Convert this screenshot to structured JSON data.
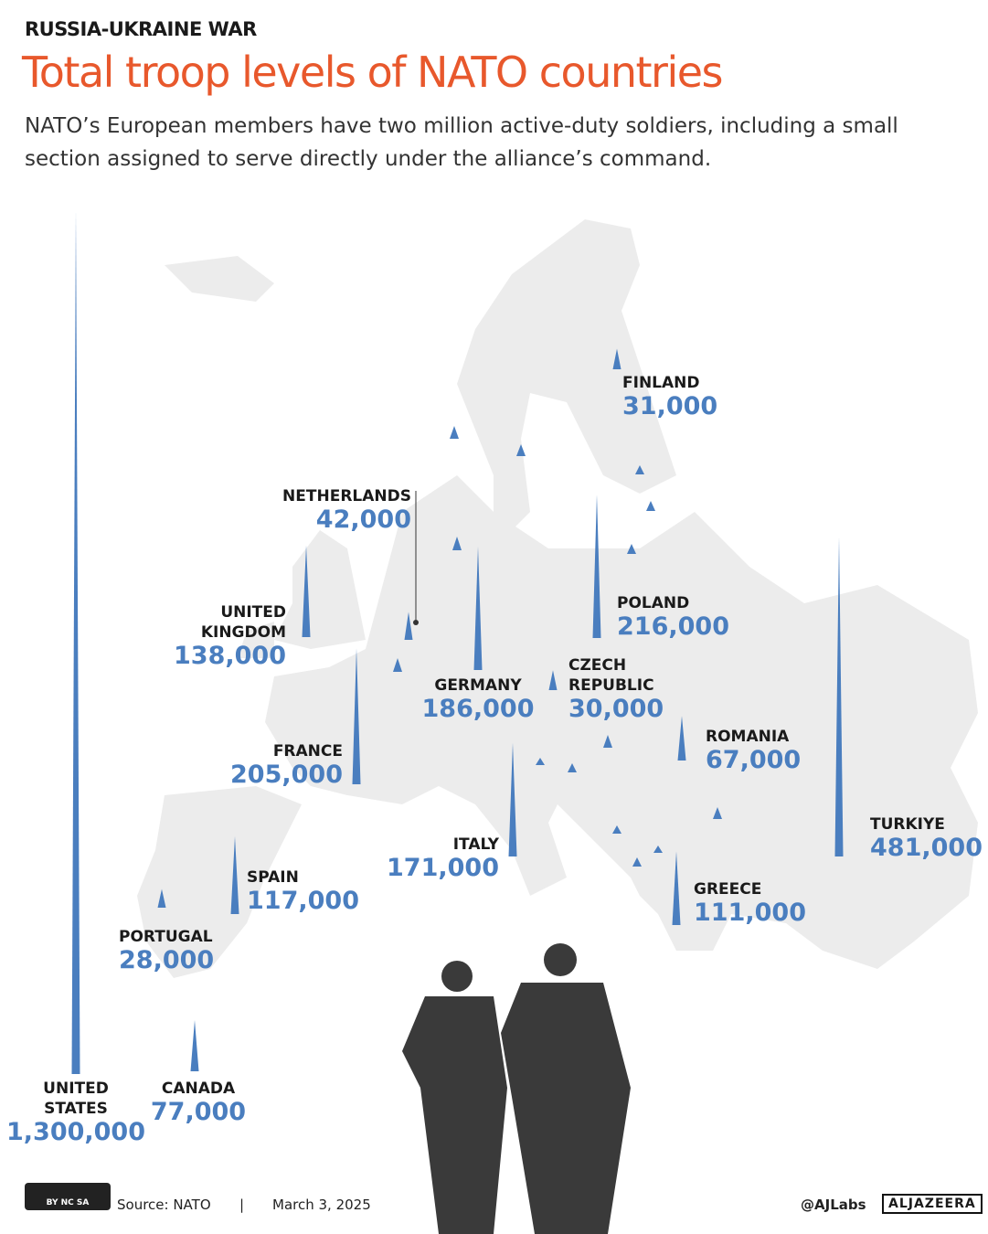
{
  "chart_data": {
    "type": "spike-map",
    "kicker": "RUSSIA-UKRAINE WAR",
    "title": "Total troop levels of NATO countries",
    "subtitle": "NATO’s European members have two million active-duty soldiers, including a small section assigned to serve directly under the alliance’s command.",
    "color": "#4a7ebf",
    "categories": [
      "UNITED STATES",
      "CANADA",
      "PORTUGAL",
      "SPAIN",
      "FRANCE",
      "UNITED KINGDOM",
      "NETHERLANDS",
      "GERMANY",
      "CZECH REPUBLIC",
      "POLAND",
      "FINLAND",
      "ROMANIA",
      "ITALY",
      "GREECE",
      "TURKIYE"
    ],
    "values": [
      1300000,
      77000,
      28000,
      117000,
      205000,
      138000,
      42000,
      186000,
      30000,
      216000,
      31000,
      67000,
      171000,
      111000,
      481000
    ],
    "value_labels": [
      "1,300,000",
      "77,000",
      "28,000",
      "117,000",
      "205,000",
      "138,000",
      "42,000",
      "186,000",
      "30,000",
      "216,000",
      "31,000",
      "67,000",
      "171,000",
      "111,000",
      "481,000"
    ]
  },
  "footer": {
    "source": "Source:  NATO",
    "separator": "|",
    "date": "March 3, 2025",
    "handle": "@AJLabs",
    "logo": "ALJAZEERA",
    "license": "BY NC SA"
  }
}
